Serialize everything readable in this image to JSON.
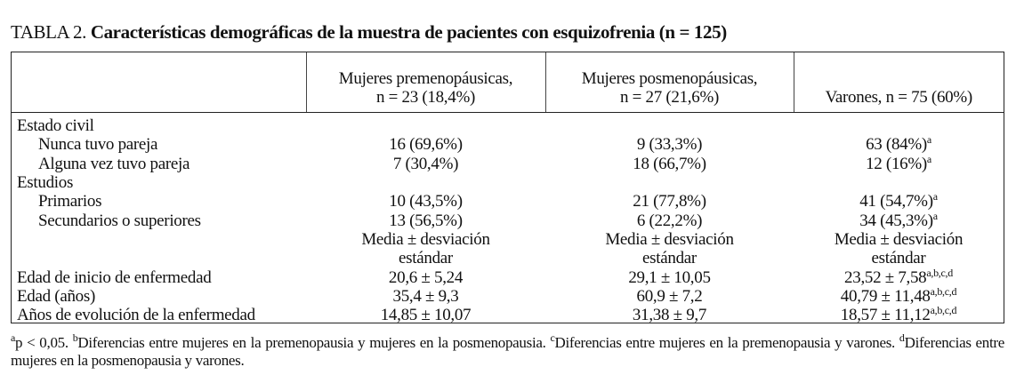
{
  "title": {
    "prefix": "TABLA 2.",
    "text": "Características demográficas de la muestra de pacientes con esquizofrenia (n = 125)"
  },
  "columns": [
    {
      "line1": "Mujeres premenopáusicas,",
      "line2": "n = 23 (18,4%)"
    },
    {
      "line1": "Mujeres posmenopáusicas,",
      "line2": "n = 27 (21,6%)"
    },
    {
      "line1": "",
      "line2": "Varones, n = 75 (60%)"
    }
  ],
  "rows": [
    {
      "label": "Estado civil",
      "values": [
        "",
        "",
        ""
      ],
      "sup": ""
    },
    {
      "label": "Nunca tuvo pareja",
      "values": [
        "16 (69,6%)",
        "9 (33,3%)",
        "63 (84%)"
      ],
      "sup": "a"
    },
    {
      "label": "Alguna vez tuvo pareja",
      "values": [
        "7 (30,4%)",
        "18 (66,7%)",
        "12 (16%)"
      ],
      "sup": "a"
    },
    {
      "label": "Estudios",
      "values": [
        "",
        "",
        ""
      ],
      "sup": ""
    },
    {
      "label": "Primarios",
      "values": [
        "10 (43,5%)",
        "21 (77,8%)",
        "41 (54,7%)"
      ],
      "sup": "a"
    },
    {
      "label": "Secundarios o superiores",
      "values": [
        "13 (56,5%)",
        "6 (22,2%)",
        "34 (45,3%)"
      ],
      "sup": "a"
    },
    {
      "label": "",
      "values": [
        "Media ± desviación",
        "Media ± desviación",
        "Media ± desviación"
      ],
      "sup": ""
    },
    {
      "label": "",
      "values": [
        "estándar",
        "estándar",
        "estándar"
      ],
      "sup": ""
    },
    {
      "label": "Edad de inicio de enfermedad",
      "values": [
        "20,6 ± 5,24",
        "29,1 ± 10,05",
        "23,52 ± 7,58"
      ],
      "sup": "a,b,c,d"
    },
    {
      "label": "Edad (años)",
      "values": [
        "35,4 ± 9,3",
        "60,9 ± 7,2",
        "40,79 ± 11,48"
      ],
      "sup": "a,b,c,d"
    },
    {
      "label": "Años de evolución de la enfermedad",
      "values": [
        "14,85 ± 10,07",
        "31,38 ± 9,7",
        "18,57 ± 11,12"
      ],
      "sup": "a,b,c,d"
    }
  ],
  "footnotes": [
    {
      "mark": "a",
      "text": "p < 0,05. "
    },
    {
      "mark": "b",
      "text": "Diferencias entre mujeres en la premenopausia y mujeres en la posmenopausia. "
    },
    {
      "mark": "c",
      "text": "Diferencias entre mujeres en la premenopausia y varones. "
    },
    {
      "mark": "d",
      "text": "Diferencias entre mujeres en la posmenopausia y varones."
    }
  ]
}
